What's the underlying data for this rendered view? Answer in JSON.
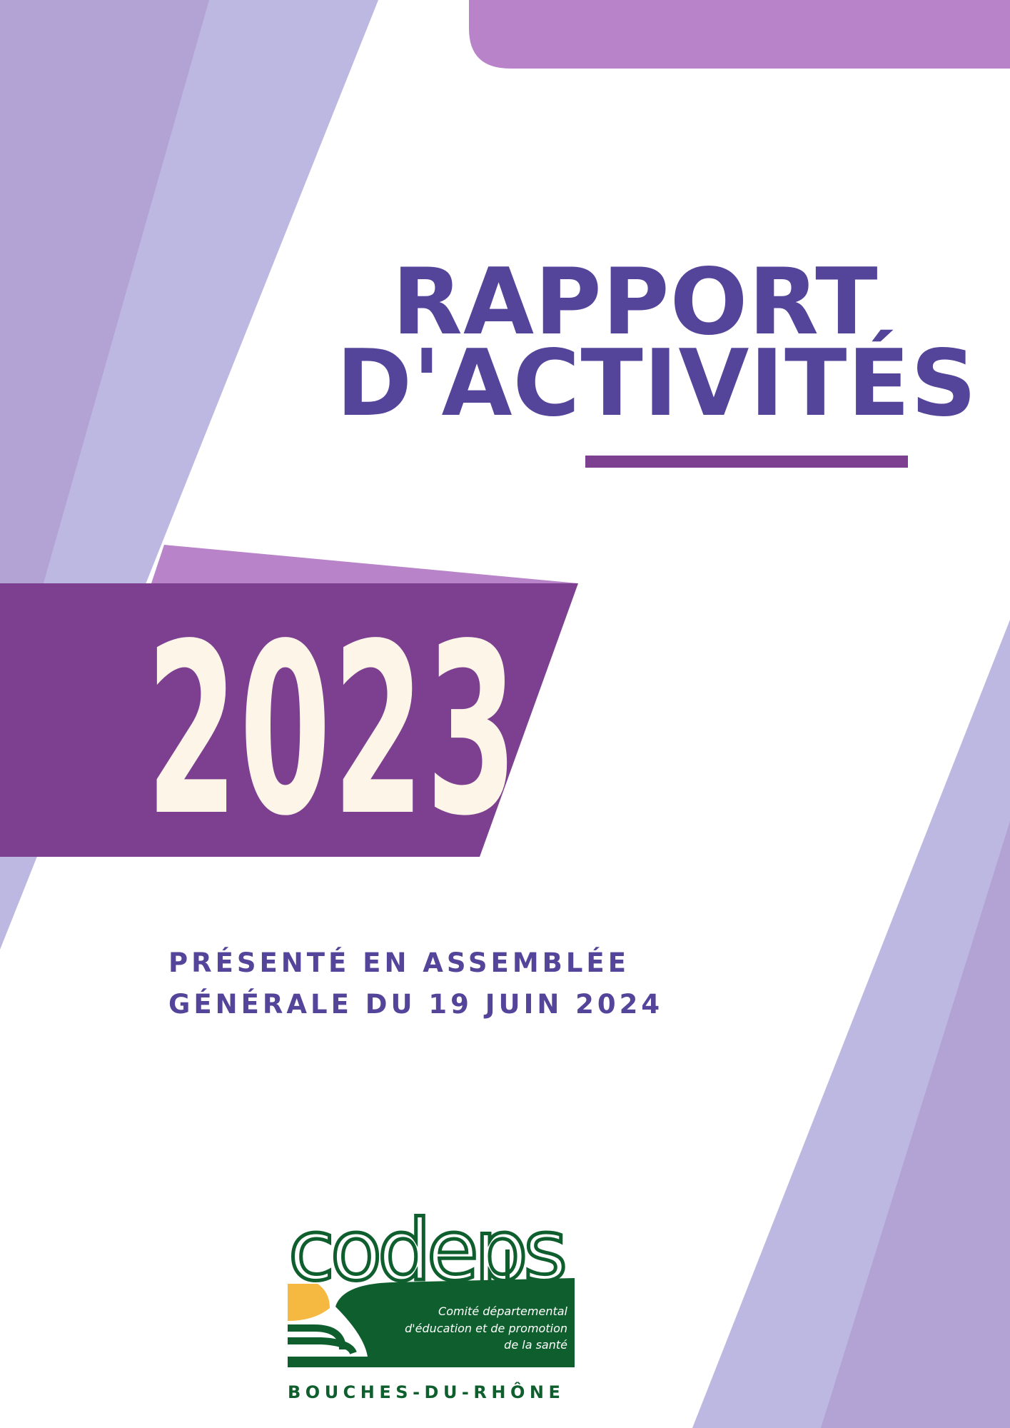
{
  "cover": {
    "title_line1": "RAPPORT",
    "title_line2": "D'ACTIVITÉS",
    "year": "2023",
    "subtitle_line1": "PRÉSENTÉ EN ASSEMBLÉE",
    "subtitle_line2": "GÉNÉRALE DU 19 JUIN 2024"
  },
  "logo": {
    "wordmark": "codeps",
    "tagline_line1": "Comité départemental",
    "tagline_line2": "d'éducation et de promotion",
    "tagline_line3": "de la santé",
    "region": "BOUCHES-DU-RHÔNE"
  },
  "colors": {
    "title_purple": "#54449a",
    "banner_purple": "#7d3f8f",
    "accent_mauve": "#b883c9",
    "lavender_light": "#bdb8e2",
    "lavender_dark": "#b3a3d5",
    "year_cream": "#fdf6e8",
    "logo_green": "#0f5f2e",
    "logo_yellow": "#f5b942"
  }
}
